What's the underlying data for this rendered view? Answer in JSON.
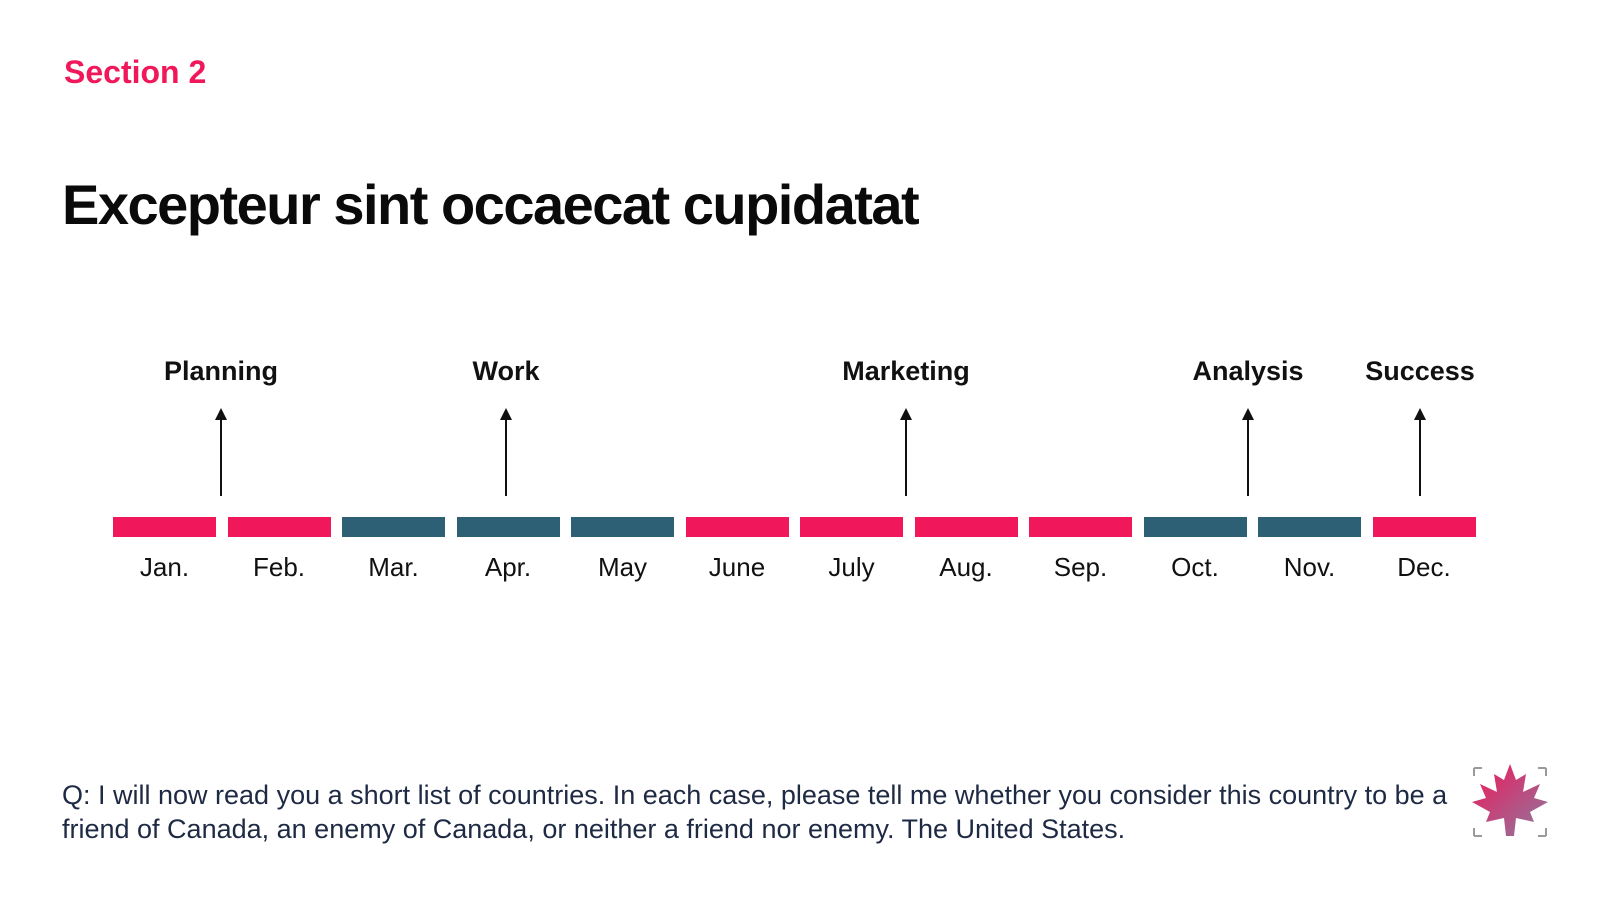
{
  "section": "Section 2",
  "title": "Excepteur sint occaecat cupidatat",
  "colors": {
    "accent": "#f0185a",
    "teal": "#2e6075"
  },
  "timeline": {
    "months": [
      {
        "label": "Jan.",
        "color": "pink"
      },
      {
        "label": "Feb.",
        "color": "pink"
      },
      {
        "label": "Mar.",
        "color": "teal"
      },
      {
        "label": "Apr.",
        "color": "teal"
      },
      {
        "label": "May",
        "color": "teal"
      },
      {
        "label": "June",
        "color": "pink"
      },
      {
        "label": "July",
        "color": "pink"
      },
      {
        "label": "Aug.",
        "color": "pink"
      },
      {
        "label": "Sep.",
        "color": "pink"
      },
      {
        "label": "Oct.",
        "color": "teal"
      },
      {
        "label": "Nov.",
        "color": "teal"
      },
      {
        "label": "Dec.",
        "color": "pink"
      }
    ],
    "milestones": [
      {
        "label": "Planning"
      },
      {
        "label": "Work"
      },
      {
        "label": "Marketing"
      },
      {
        "label": "Analysis"
      },
      {
        "label": "Success"
      }
    ]
  },
  "question": "Q: I will now read you a short list of countries. In each case, please tell me whether you consider this country to be a friend of Canada, an enemy of Canada, or neither a friend nor enemy. The United States.",
  "logo": {
    "icon": "maple-leaf-icon"
  }
}
